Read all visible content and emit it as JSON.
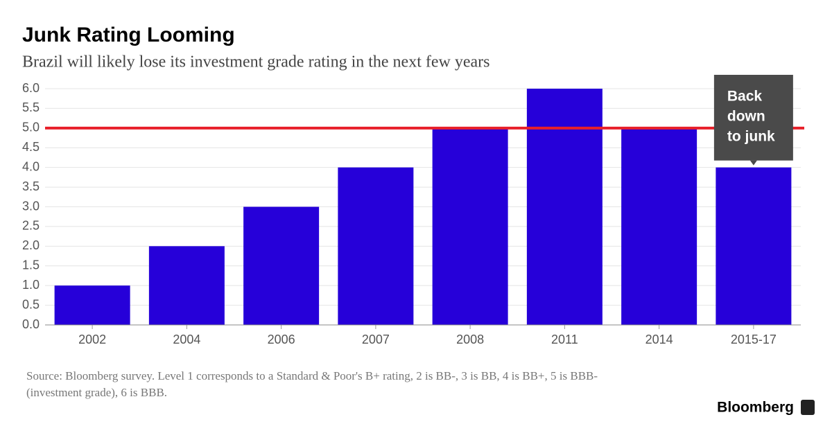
{
  "chart_data": {
    "type": "bar",
    "title": "Junk Rating Looming",
    "subtitle": "Brazil will likely lose its investment grade rating in the next few years",
    "categories": [
      "2002",
      "2004",
      "2006",
      "2007",
      "2008",
      "2011",
      "2014",
      "2015-17"
    ],
    "values": [
      1,
      2,
      3,
      4,
      5,
      6,
      5,
      4
    ],
    "color": "#2600d9",
    "ylim": [
      0,
      6
    ],
    "yticks": [
      {
        "value": 0,
        "label": "0.0"
      },
      0.5,
      {
        "value": 1,
        "label": "1.0"
      },
      1.5,
      {
        "value": 2,
        "label": "2.0"
      },
      2.5,
      {
        "value": 3,
        "label": "3.0"
      },
      3.5,
      {
        "value": 4,
        "label": "4.0"
      },
      4.5,
      {
        "value": 5,
        "label": "5.0"
      },
      5.5,
      {
        "value": 6,
        "label": "6.0"
      }
    ],
    "grid": true,
    "reference_line": {
      "value": 5,
      "color": "#e8202a"
    },
    "annotation": {
      "lines": [
        "Back",
        "down",
        "to junk"
      ]
    },
    "source": [
      "Source: Bloomberg survey. Level 1 corresponds to a Standard & Poor's B+ rating, 2 is BB-, 3 is BB, 4 is BB+, 5 is BBB-",
      "(investment grade), 6 is BBB."
    ],
    "brand": "Bloomberg"
  }
}
